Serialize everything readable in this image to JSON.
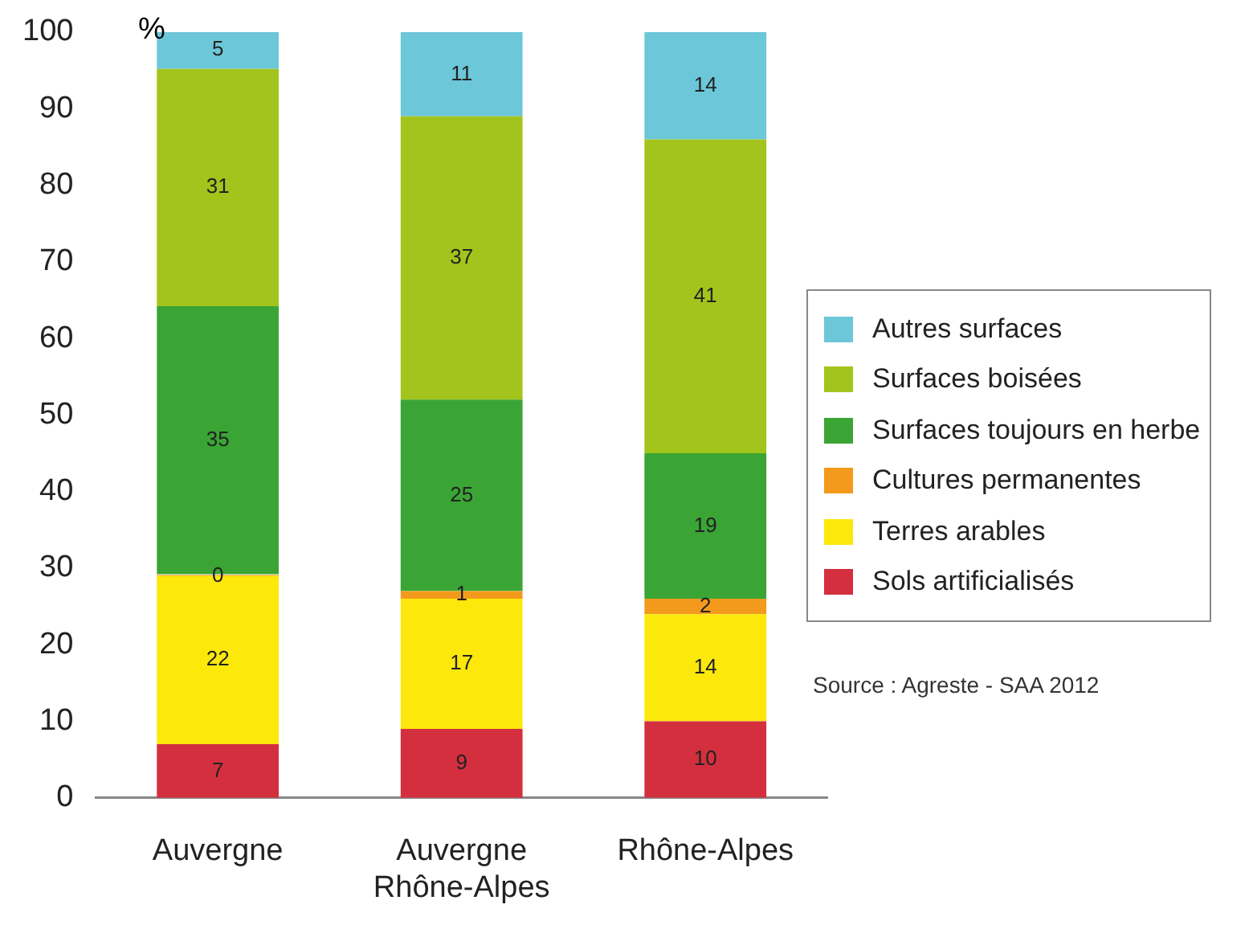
{
  "chart_data": {
    "type": "bar",
    "stacked": true,
    "ylabel": "%",
    "categories": [
      "Auvergne",
      "Auvergne\nRhône-Alpes",
      "Rhône-Alpes"
    ],
    "series": [
      {
        "name": "Sols artificialisés",
        "color": "#d42f3e",
        "values": [
          7,
          9,
          10
        ],
        "value_labels": [
          "7",
          "9",
          "10"
        ]
      },
      {
        "name": "Terres arables",
        "color": "#fde80c",
        "values": [
          22,
          17,
          14
        ],
        "value_labels": [
          "22",
          "17",
          "14"
        ]
      },
      {
        "name": "Cultures permanentes",
        "color": "#f39a1d",
        "values": [
          0,
          1,
          2
        ],
        "value_labels": [
          "0",
          "1",
          "2"
        ]
      },
      {
        "name": "Surfaces toujours en herbe",
        "color": "#3aa535",
        "values": [
          35,
          25,
          19
        ],
        "value_labels": [
          "35",
          "25",
          "19"
        ]
      },
      {
        "name": "Surfaces boisées",
        "color": "#a3c41c",
        "values": [
          31,
          37,
          41
        ],
        "value_labels": [
          "31",
          "37",
          "41"
        ]
      },
      {
        "name": "Autres surfaces",
        "color": "#6cc7d8",
        "values": [
          5,
          11,
          14
        ],
        "value_labels": [
          "5",
          "11",
          "14"
        ]
      }
    ],
    "ylim": [
      0,
      100
    ],
    "yticks": [
      0,
      10,
      20,
      30,
      40,
      50,
      60,
      70,
      80,
      90,
      100
    ],
    "grid": false,
    "legend": "right",
    "annotations": [
      "Source : Agreste - SAA 2012"
    ]
  }
}
